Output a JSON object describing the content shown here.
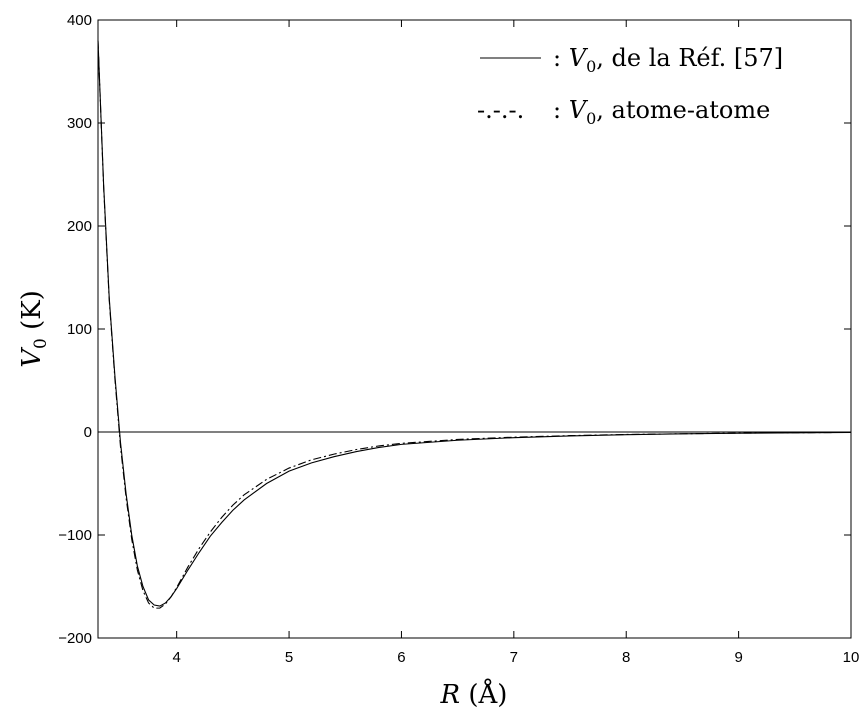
{
  "chart_data": {
    "type": "line",
    "xlabel_var": "R",
    "xlabel_unit": "(Å)",
    "ylabel_var": "V",
    "ylabel_sub": "0",
    "ylabel_unit": "(K)",
    "xlim": [
      3.3,
      10
    ],
    "ylim": [
      -200,
      400
    ],
    "xticks": [
      4,
      5,
      6,
      7,
      8,
      9,
      10
    ],
    "yticks": [
      -200,
      -100,
      0,
      100,
      200,
      300,
      400
    ],
    "ytick_labels": [
      "−200",
      "−100",
      "0",
      "100",
      "200",
      "300",
      "400"
    ],
    "grid": false,
    "legend_position": "top-right",
    "zero_line": true,
    "series": [
      {
        "legend_marker": "",
        "legend_label": ": V0, de la Réf. [57]",
        "legend_var": "V",
        "legend_sub": "0",
        "legend_rest": ", de la Réf. [57]",
        "style": "solid",
        "x": [
          3.3,
          3.35,
          3.4,
          3.45,
          3.5,
          3.55,
          3.6,
          3.65,
          3.7,
          3.75,
          3.8,
          3.85,
          3.9,
          3.95,
          4.0,
          4.1,
          4.2,
          4.3,
          4.4,
          4.5,
          4.6,
          4.8,
          5.0,
          5.2,
          5.4,
          5.6,
          5.8,
          6.0,
          6.5,
          7.0,
          7.5,
          8.0,
          8.5,
          9.0,
          9.5,
          10.0
        ],
        "y": [
          380,
          240,
          130,
          55,
          -10,
          -60,
          -100,
          -130,
          -150,
          -163,
          -168,
          -169,
          -166,
          -160,
          -152,
          -134,
          -117,
          -101,
          -88,
          -76,
          -66,
          -50,
          -38,
          -30,
          -24,
          -19,
          -15,
          -12,
          -8,
          -5.5,
          -3.8,
          -2.6,
          -1.8,
          -1.2,
          -0.8,
          -0.5
        ]
      },
      {
        "legend_marker": "-.-.-.",
        "legend_label": ": V0, atome-atome",
        "legend_var": "V",
        "legend_sub": "0",
        "legend_rest": ", atome-atome",
        "style": "dashdot",
        "x": [
          3.3,
          3.35,
          3.4,
          3.45,
          3.5,
          3.55,
          3.6,
          3.65,
          3.7,
          3.75,
          3.8,
          3.85,
          3.9,
          3.95,
          4.0,
          4.1,
          4.2,
          4.3,
          4.4,
          4.5,
          4.6,
          4.8,
          5.0,
          5.2,
          5.4,
          5.6,
          5.8,
          6.0,
          6.5,
          7.0,
          7.5,
          8.0,
          8.5,
          9.0,
          9.5,
          10.0
        ],
        "y": [
          380,
          238,
          128,
          52,
          -14,
          -64,
          -104,
          -134,
          -154,
          -166,
          -171,
          -171,
          -167,
          -160,
          -151,
          -131,
          -113,
          -97,
          -83,
          -71,
          -61,
          -46,
          -35,
          -27,
          -21.5,
          -17,
          -13.5,
          -11,
          -7.2,
          -5,
          -3.5,
          -2.4,
          -1.7,
          -1.1,
          -0.7,
          -0.4
        ]
      }
    ]
  },
  "colors": {
    "axis": "#000000",
    "line": "#000000",
    "background": "#ffffff"
  }
}
